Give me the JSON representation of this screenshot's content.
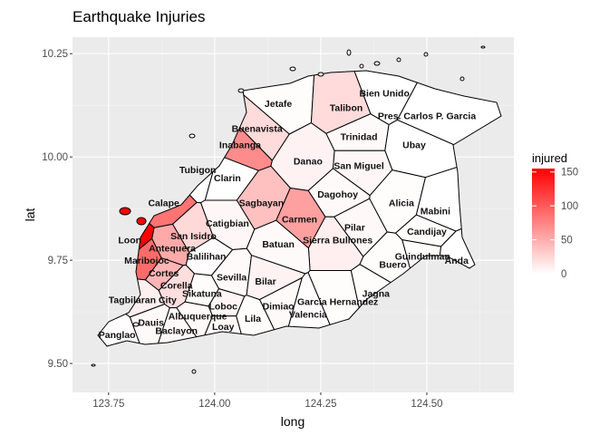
{
  "chart_data": {
    "type": "choropleth",
    "title": "Earthquake Injuries",
    "xlabel": "long",
    "ylabel": "lat",
    "xlim": [
      123.665,
      124.705
    ],
    "ylim": [
      9.43,
      10.29
    ],
    "x_ticks": [
      123.75,
      124.0,
      124.25,
      124.5
    ],
    "x_tick_labels": [
      "123.75",
      "124.00",
      "124.25",
      "124.50"
    ],
    "y_ticks": [
      9.5,
      9.75,
      10.0,
      10.25
    ],
    "y_tick_labels": [
      "9.50",
      "9.75",
      "10.00",
      "10.25"
    ],
    "grid": true,
    "legend": {
      "title": "injured",
      "position": "right",
      "min": 0,
      "max": 155,
      "ticks": [
        0,
        50,
        100,
        150
      ],
      "low_color": "#ffffff",
      "high_color": "#ff0000"
    },
    "colors": {
      "panel": "#ebebeb",
      "grid_major": "#ffffff",
      "grid_minor": "#f5f5f5",
      "border": "#000000"
    },
    "municipalities": [
      {
        "name": "Bien Unido",
        "long": 124.4,
        "lat": 10.155,
        "injured": 0
      },
      {
        "name": "Jetafe",
        "long": 124.15,
        "lat": 10.13,
        "injured": 2
      },
      {
        "name": "Talibon",
        "long": 124.31,
        "lat": 10.12,
        "injured": 22
      },
      {
        "name": "Pres. Carlos P. Garcia",
        "long": 124.5,
        "lat": 10.1,
        "injured": 0
      },
      {
        "name": "Buenavista",
        "long": 124.1,
        "lat": 10.07,
        "injured": 22
      },
      {
        "name": "Trinidad",
        "long": 124.34,
        "lat": 10.05,
        "injured": 3
      },
      {
        "name": "Inabanga",
        "long": 124.06,
        "lat": 10.03,
        "injured": 70
      },
      {
        "name": "Ubay",
        "long": 124.47,
        "lat": 10.03,
        "injured": 0
      },
      {
        "name": "Tubigon",
        "long": 123.96,
        "lat": 9.97,
        "injured": 0
      },
      {
        "name": "Danao",
        "long": 124.22,
        "lat": 9.99,
        "injured": 8
      },
      {
        "name": "San Miguel",
        "long": 124.34,
        "lat": 9.98,
        "injured": 5
      },
      {
        "name": "Clarin",
        "long": 124.03,
        "lat": 9.95,
        "injured": 0
      },
      {
        "name": "Calape",
        "long": 123.88,
        "lat": 9.89,
        "injured": 85
      },
      {
        "name": "Sagbayan",
        "long": 124.11,
        "lat": 9.89,
        "injured": 38
      },
      {
        "name": "Dagohoy",
        "long": 124.29,
        "lat": 9.91,
        "injured": 3
      },
      {
        "name": "Alicia",
        "long": 124.44,
        "lat": 9.89,
        "injured": 2
      },
      {
        "name": "Mabini",
        "long": 124.52,
        "lat": 9.87,
        "injured": 0
      },
      {
        "name": "Catigbian",
        "long": 124.03,
        "lat": 9.84,
        "injured": 5
      },
      {
        "name": "Carmen",
        "long": 124.2,
        "lat": 9.85,
        "injured": 58
      },
      {
        "name": "Pilar",
        "long": 124.33,
        "lat": 9.83,
        "injured": 4
      },
      {
        "name": "Loon",
        "long": 123.8,
        "lat": 9.8,
        "injured": 155
      },
      {
        "name": "San Isidro",
        "long": 123.95,
        "lat": 9.81,
        "injured": 24
      },
      {
        "name": "Candijay",
        "long": 124.5,
        "lat": 9.82,
        "injured": 2
      },
      {
        "name": "Sierra Bullones",
        "long": 124.29,
        "lat": 9.8,
        "injured": 10
      },
      {
        "name": "Batuan",
        "long": 124.15,
        "lat": 9.79,
        "injured": 3
      },
      {
        "name": "Antequera",
        "long": 123.9,
        "lat": 9.78,
        "injured": 52
      },
      {
        "name": "Guindulman",
        "long": 124.49,
        "lat": 9.76,
        "injured": 2
      },
      {
        "name": "Anda",
        "long": 124.57,
        "lat": 9.75,
        "injured": 0
      },
      {
        "name": "Balilihan",
        "long": 123.98,
        "lat": 9.76,
        "injured": 1
      },
      {
        "name": "Maribojoc",
        "long": 123.84,
        "lat": 9.75,
        "injured": 90
      },
      {
        "name": "Buero",
        "long": 124.42,
        "lat": 9.74,
        "injured": 2
      },
      {
        "name": "Cortes",
        "long": 123.88,
        "lat": 9.72,
        "injured": 45
      },
      {
        "name": "Sevilla",
        "long": 124.04,
        "lat": 9.71,
        "injured": 3
      },
      {
        "name": "Bilar",
        "long": 124.12,
        "lat": 9.7,
        "injured": 8
      },
      {
        "name": "Jagna",
        "long": 124.38,
        "lat": 9.67,
        "injured": 2
      },
      {
        "name": "Corella",
        "long": 123.91,
        "lat": 9.69,
        "injured": 20
      },
      {
        "name": "Sikatuna",
        "long": 123.97,
        "lat": 9.67,
        "injured": 2
      },
      {
        "name": "Garcia Hernandez",
        "long": 124.29,
        "lat": 9.65,
        "injured": 2
      },
      {
        "name": "Tagbilaran City",
        "long": 123.83,
        "lat": 9.655,
        "injured": 10
      },
      {
        "name": "Dimiao",
        "long": 124.15,
        "lat": 9.64,
        "injured": 3
      },
      {
        "name": "Loboc",
        "long": 124.02,
        "lat": 9.64,
        "injured": 6
      },
      {
        "name": "Albuquerque",
        "long": 123.96,
        "lat": 9.615,
        "injured": 3
      },
      {
        "name": "Valencia",
        "long": 124.22,
        "lat": 9.62,
        "injured": 1
      },
      {
        "name": "Lila",
        "long": 124.09,
        "lat": 9.61,
        "injured": 2
      },
      {
        "name": "Dauis",
        "long": 123.85,
        "lat": 9.6,
        "injured": 3
      },
      {
        "name": "Loay",
        "long": 124.02,
        "lat": 9.59,
        "injured": 3
      },
      {
        "name": "Baclayon",
        "long": 123.91,
        "lat": 9.58,
        "injured": 4
      },
      {
        "name": "Panglao",
        "long": 123.77,
        "lat": 9.57,
        "injured": 1
      }
    ]
  }
}
